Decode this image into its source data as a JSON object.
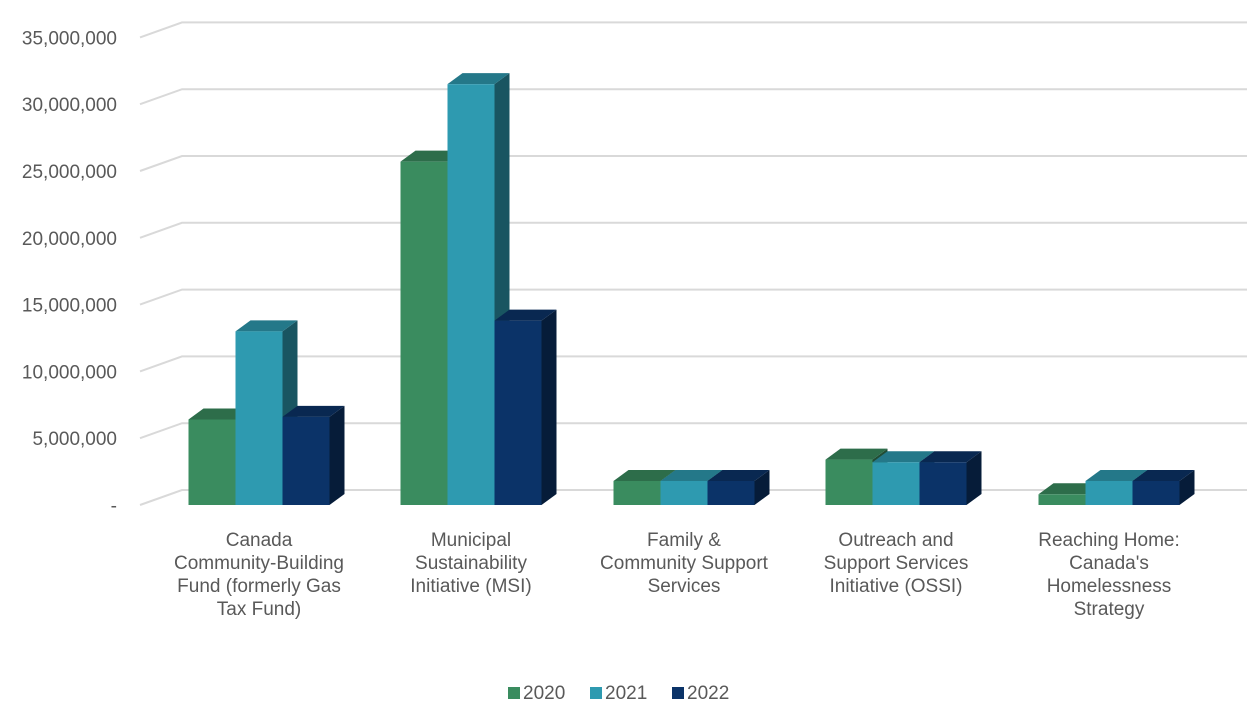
{
  "chart_data": {
    "type": "bar",
    "style": "3d-clustered-column",
    "categories": [
      [
        "Canada",
        "Community-Building",
        "Fund (formerly Gas",
        "Tax Fund)"
      ],
      [
        "Municipal",
        "Sustainability",
        "Initiative (MSI)"
      ],
      [
        "Family &",
        "Community Support",
        "Services"
      ],
      [
        "Outreach and",
        "Support Services",
        "Initiative (OSSI)"
      ],
      [
        "Reaching Home:",
        "Canada's",
        "Homelessness",
        "Strategy"
      ]
    ],
    "series": [
      {
        "name": "2020",
        "color": "#3a8c5f",
        "values": [
          6400000,
          25700000,
          1800000,
          3400000,
          800000
        ]
      },
      {
        "name": "2021",
        "color": "#2e9ab0",
        "values": [
          13000000,
          31500000,
          1800000,
          3200000,
          1800000
        ]
      },
      {
        "name": "2022",
        "color": "#0b3368",
        "values": [
          6600000,
          13800000,
          1800000,
          3200000,
          1800000
        ]
      }
    ],
    "yticks": [
      "-",
      "5,000,000",
      "10,000,000",
      "15,000,000",
      "20,000,000",
      "25,000,000",
      "30,000,000",
      "35,000,000"
    ],
    "ylim": [
      0,
      37500000
    ],
    "ystep": 5000000,
    "grid": true,
    "legend_position": "bottom"
  }
}
